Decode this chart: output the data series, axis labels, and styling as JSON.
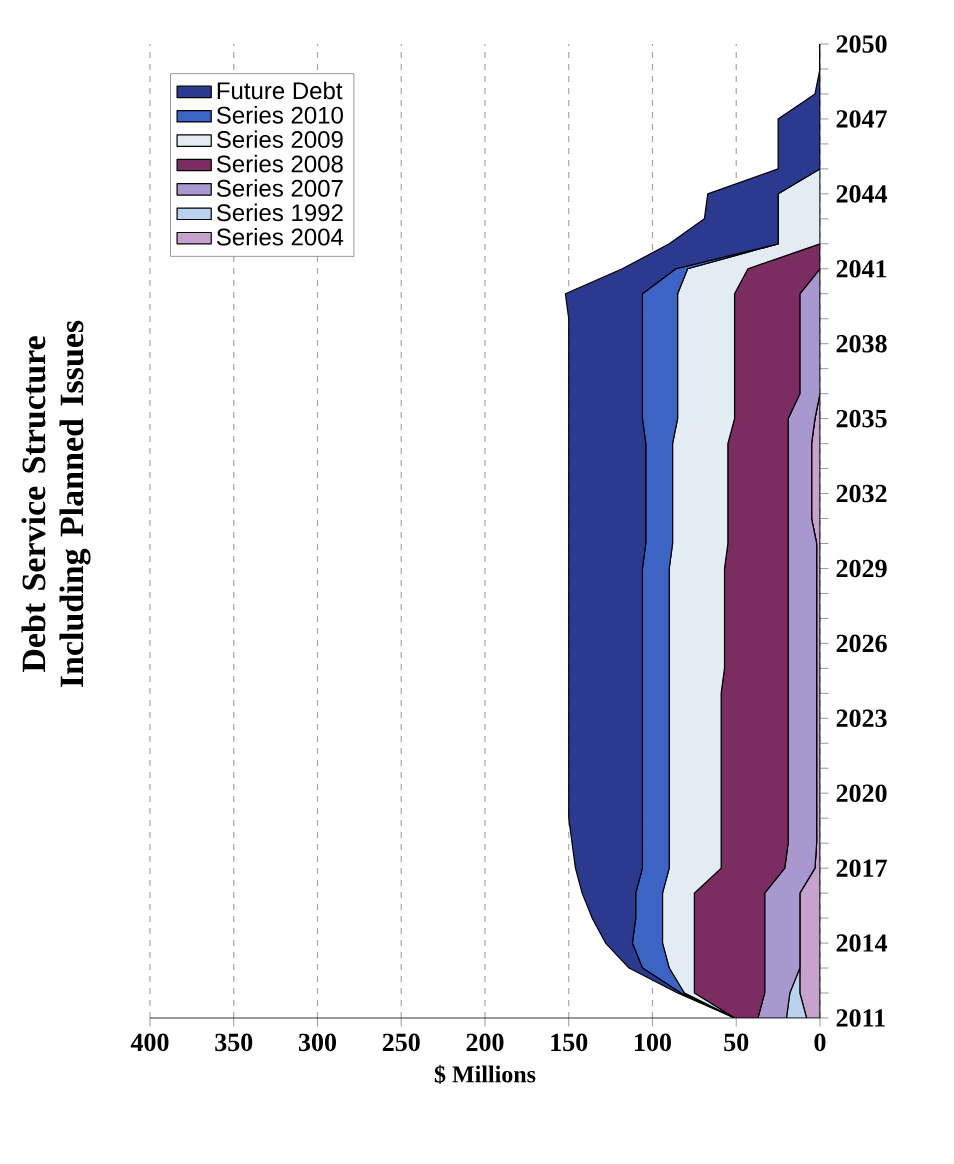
{
  "chart_data": {
    "type": "area",
    "title": "Debt Service Structure Including Planned Issues",
    "xlabel": "$ Millions",
    "orientation": "horizontal",
    "stacked": true,
    "categories": [
      "2050",
      null,
      null,
      "2047",
      null,
      null,
      "2044",
      null,
      null,
      "2041",
      null,
      null,
      "2038",
      null,
      null,
      "2035",
      null,
      null,
      "2032",
      null,
      null,
      "2029",
      null,
      null,
      "2026",
      null,
      null,
      "2023",
      null,
      null,
      "2020",
      null,
      null,
      "2017",
      null,
      null,
      "2014",
      null,
      null,
      "2011"
    ],
    "xlim": [
      400,
      0
    ],
    "xticks": [
      0,
      50,
      100,
      150,
      200,
      250,
      300,
      350,
      400
    ],
    "grid": "x",
    "legend": "top left",
    "series": [
      {
        "name": "Series 2004",
        "color": "#c8a2cf",
        "values": [
          0,
          0,
          0,
          0,
          0,
          0,
          0,
          0,
          0,
          0,
          0,
          0,
          0,
          0,
          0,
          3,
          5,
          5,
          5,
          5,
          2,
          2,
          2,
          2,
          2,
          2,
          2,
          2,
          2,
          2,
          2,
          2,
          2,
          3,
          12,
          12,
          12,
          12,
          12,
          8
        ]
      },
      {
        "name": "Series 1992",
        "color": "#b9d3ee",
        "values": [
          0,
          0,
          0,
          0,
          0,
          0,
          0,
          0,
          0,
          0,
          0,
          0,
          0,
          0,
          0,
          0,
          0,
          0,
          0,
          0,
          0,
          0,
          0,
          0,
          0,
          0,
          0,
          0,
          0,
          0,
          0,
          0,
          0,
          0,
          0,
          0,
          0,
          0,
          6,
          12
        ]
      },
      {
        "name": "Series 2007",
        "color": "#a898cf",
        "values": [
          0,
          0,
          0,
          0,
          0,
          0,
          0,
          0,
          0,
          0,
          12,
          12,
          12,
          12,
          12,
          16,
          14,
          14,
          14,
          14,
          17,
          17,
          17,
          17,
          17,
          17,
          17,
          17,
          17,
          17,
          17,
          17,
          17,
          18,
          21,
          21,
          21,
          21,
          15,
          17
        ]
      },
      {
        "name": "Series 2008",
        "color": "#7b2d62",
        "values": [
          0,
          0,
          0,
          0,
          0,
          0,
          0,
          0,
          0,
          43,
          39,
          39,
          39,
          39,
          39,
          32,
          36,
          36,
          36,
          36,
          36,
          38,
          38,
          38,
          38,
          38,
          40,
          40,
          40,
          40,
          40,
          40,
          40,
          38,
          42,
          42,
          42,
          42,
          42,
          14
        ]
      },
      {
        "name": "Series 2009",
        "color": "#e4ecf3",
        "values": [
          0,
          0,
          0,
          0,
          0,
          0,
          25,
          25,
          25,
          36,
          34,
          34,
          34,
          34,
          34,
          34,
          33,
          33,
          33,
          33,
          33,
          33,
          33,
          33,
          33,
          33,
          31,
          31,
          31,
          31,
          31,
          31,
          31,
          31,
          19,
          19,
          19,
          15,
          6,
          0
        ]
      },
      {
        "name": "Series 2010",
        "color": "#3d63c4",
        "values": [
          0,
          0,
          0,
          0,
          0,
          0,
          0,
          0,
          0,
          7,
          21,
          21,
          21,
          21,
          21,
          21,
          16,
          16,
          16,
          16,
          16,
          16,
          16,
          16,
          16,
          16,
          16,
          16,
          16,
          16,
          16,
          16,
          16,
          16,
          16,
          16,
          18,
          16,
          2,
          0
        ]
      },
      {
        "name": "Future Debt",
        "color": "#2b3a8f",
        "values": [
          0,
          0,
          3,
          25,
          25,
          25,
          42,
          44,
          65,
          32,
          46,
          44,
          44,
          44,
          44,
          44,
          46,
          46,
          46,
          46,
          46,
          44,
          44,
          44,
          44,
          44,
          44,
          44,
          44,
          44,
          44,
          44,
          42,
          40,
          32,
          26,
          16,
          8,
          2,
          0
        ]
      }
    ]
  }
}
